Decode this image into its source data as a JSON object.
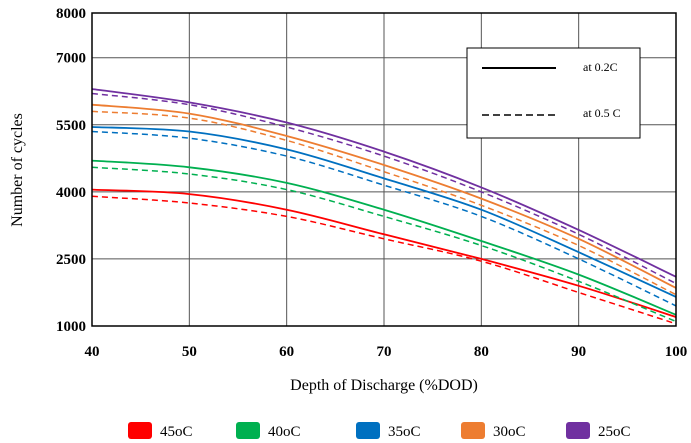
{
  "chart_data": {
    "type": "line",
    "title": "",
    "xlabel": "Depth of Discharge (%DOD)",
    "ylabel": "Number of cycles",
    "xlim": [
      40,
      100
    ],
    "ylim": [
      1000,
      8000
    ],
    "x_ticks": [
      "40",
      "50",
      "60",
      "70",
      "80",
      "90",
      "100"
    ],
    "y_ticks": [
      "1000",
      "2500",
      "4000",
      "5500",
      "7000",
      "8000"
    ],
    "x_tick_values": [
      40,
      50,
      60,
      70,
      80,
      90,
      100
    ],
    "y_tick_values": [
      1000,
      2500,
      4000,
      5500,
      7000,
      8000
    ],
    "grid": true,
    "line_legend": [
      {
        "label": "at 0.2C",
        "style": "solid"
      },
      {
        "label": "at 0.5 C",
        "style": "dashed"
      }
    ],
    "color_legend": [
      {
        "label": "45oC",
        "color": "#ff0000"
      },
      {
        "label": "40oC",
        "color": "#00b050"
      },
      {
        "label": "35oC",
        "color": "#0070c0"
      },
      {
        "label": "30oC",
        "color": "#ed7d31"
      },
      {
        "label": "25oC",
        "color": "#7030a0"
      }
    ],
    "x": [
      40,
      50,
      60,
      70,
      80,
      90,
      100
    ],
    "series": [
      {
        "name": "45oC at 0.2C",
        "color": "#ff0000",
        "style": "solid",
        "values": [
          4050,
          3950,
          3600,
          3050,
          2500,
          1900,
          1200
        ]
      },
      {
        "name": "45oC at 0.5 C",
        "color": "#ff0000",
        "style": "dashed",
        "values": [
          3900,
          3750,
          3450,
          2950,
          2450,
          1750,
          1050
        ]
      },
      {
        "name": "40oC at 0.2C",
        "color": "#00b050",
        "style": "solid",
        "values": [
          4700,
          4550,
          4200,
          3600,
          2900,
          2150,
          1250
        ]
      },
      {
        "name": "40oC at 0.5 C",
        "color": "#00b050",
        "style": "dashed",
        "values": [
          4550,
          4400,
          4050,
          3450,
          2800,
          2000,
          1100
        ]
      },
      {
        "name": "35oC at 0.2C",
        "color": "#0070c0",
        "style": "solid",
        "values": [
          5450,
          5350,
          4950,
          4300,
          3600,
          2650,
          1650
        ]
      },
      {
        "name": "35oC at 0.5 C",
        "color": "#0070c0",
        "style": "dashed",
        "values": [
          5350,
          5200,
          4800,
          4150,
          3450,
          2500,
          1450
        ]
      },
      {
        "name": "30oC at 0.2C",
        "color": "#ed7d31",
        "style": "solid",
        "values": [
          5950,
          5750,
          5250,
          4600,
          3850,
          2950,
          1850
        ]
      },
      {
        "name": "30oC at 0.5 C",
        "color": "#ed7d31",
        "style": "dashed",
        "values": [
          5800,
          5650,
          5150,
          4450,
          3700,
          2800,
          1700
        ]
      },
      {
        "name": "25oC at 0.2C",
        "color": "#7030a0",
        "style": "solid",
        "values": [
          6300,
          6000,
          5550,
          4900,
          4100,
          3150,
          2100
        ]
      },
      {
        "name": "25oC at 0.5 C",
        "color": "#7030a0",
        "style": "dashed",
        "values": [
          6200,
          5950,
          5450,
          4800,
          4000,
          3050,
          1950
        ]
      }
    ]
  }
}
